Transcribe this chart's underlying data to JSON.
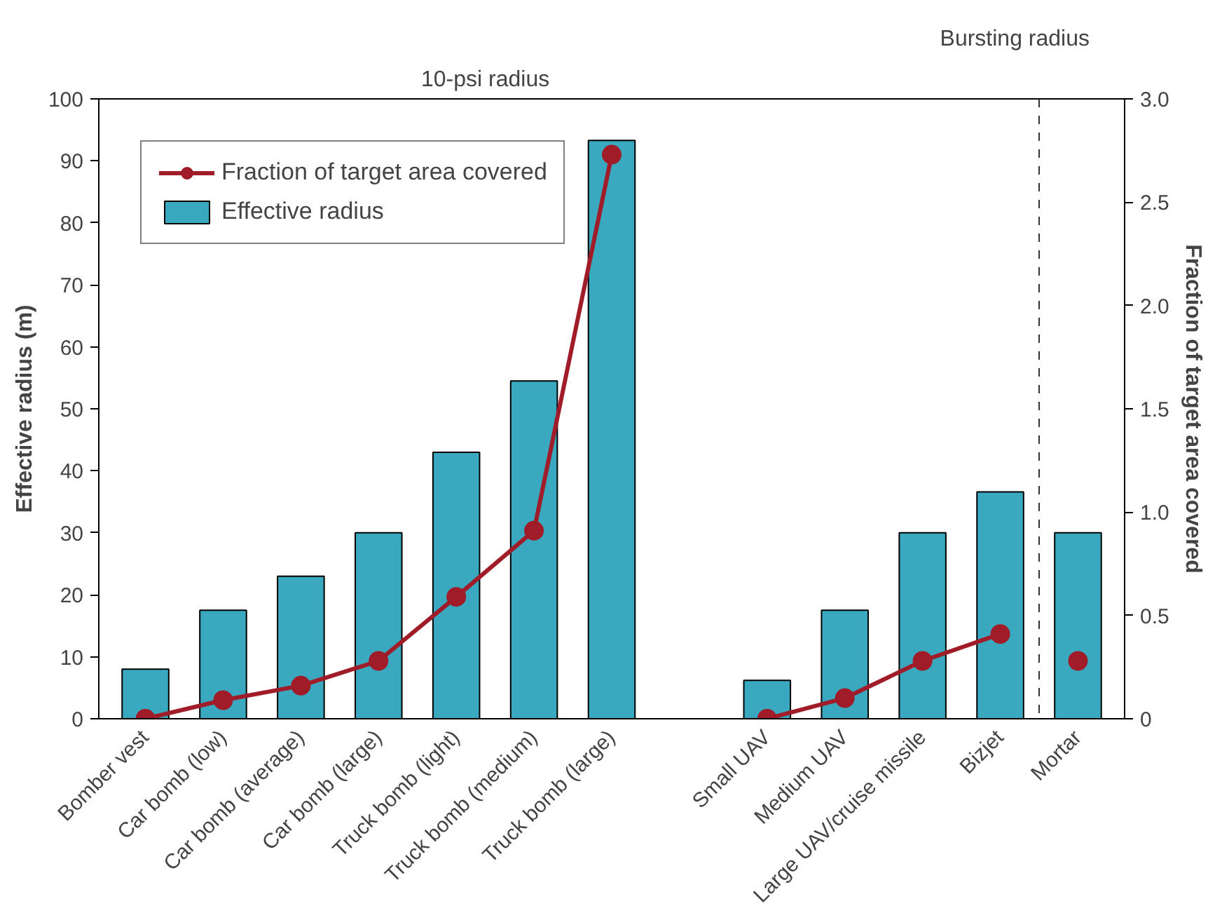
{
  "chart_data": {
    "type": "bar",
    "ylabel": "Effective radius (m)",
    "y2label": "Fraction of target area covered",
    "categories": [
      "Bomber vest",
      "Car bomb (low)",
      "Car bomb (average)",
      "Car bomb (large)",
      "Truck bomb (light)",
      "Truck bomb (medium)",
      "Truck bomb (large)",
      null,
      "Small UAV",
      "Medium UAV",
      "Large UAV/cruise missile",
      "Bizjet",
      "Mortar"
    ],
    "series": [
      {
        "name": "Effective radius",
        "color": "#3aa8bf",
        "values": [
          8,
          17.5,
          23,
          30,
          43,
          54.5,
          93.3,
          null,
          6.2,
          17.5,
          30,
          36.6,
          30
        ]
      },
      {
        "name": "Fraction of target area covered",
        "type": "line",
        "axis": "y2",
        "color": "#a01c28",
        "values": [
          0,
          0.09,
          0.16,
          0.28,
          0.59,
          0.91,
          2.73,
          null,
          0,
          0.1,
          0.28,
          0.41,
          null
        ]
      },
      {
        "type": "scatter",
        "axis": "y2",
        "color": "#a01c28",
        "values": [
          null,
          null,
          null,
          null,
          null,
          null,
          null,
          null,
          null,
          null,
          null,
          null,
          0.28
        ]
      }
    ],
    "ylim": [
      0,
      100
    ],
    "yticks": [
      0,
      10,
      20,
      30,
      40,
      50,
      60,
      70,
      80,
      90,
      100
    ],
    "y2lim": [
      0,
      3.0
    ],
    "y2ticks": [
      0,
      {
        "value": 0.5,
        "label": "0.5"
      },
      {
        "value": 1.0,
        "label": "1.0"
      },
      {
        "value": 1.5,
        "label": "1.5"
      },
      {
        "value": 2.0,
        "label": "2.0"
      },
      {
        "value": 2.5,
        "label": "2.5"
      },
      {
        "value": 3.0,
        "label": "3.0"
      }
    ],
    "annotations": [
      "10-psi radius",
      "Bursting radius"
    ],
    "marker": "circle",
    "legend": "top left",
    "grid": false
  }
}
